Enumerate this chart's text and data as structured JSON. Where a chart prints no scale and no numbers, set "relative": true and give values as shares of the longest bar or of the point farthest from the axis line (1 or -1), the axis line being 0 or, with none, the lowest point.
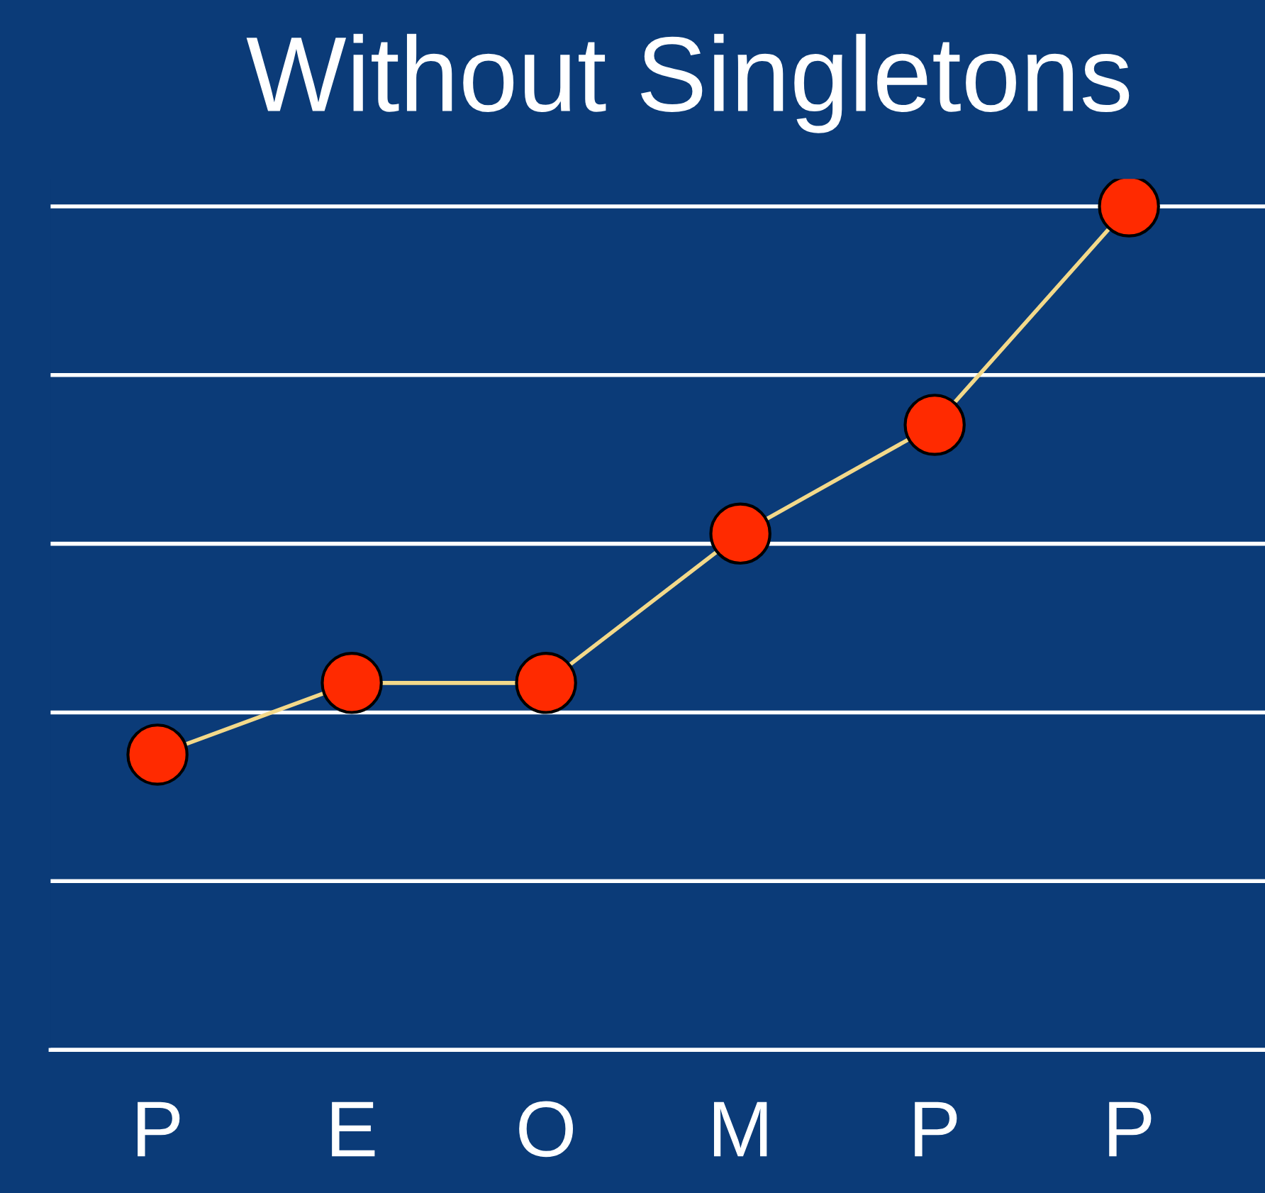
{
  "chart_data": {
    "type": "line",
    "title": "Without Singletons",
    "categories": [
      "P",
      "E",
      "O",
      "M",
      "P",
      "P"
    ],
    "series": [
      {
        "color": "#f3d98a",
        "values": [
          0.35,
          0.435,
          0.435,
          0.612,
          0.741,
          1.0
        ]
      }
    ],
    "relative": true,
    "marker": "circle",
    "line_style": "solid",
    "grid": "y"
  }
}
